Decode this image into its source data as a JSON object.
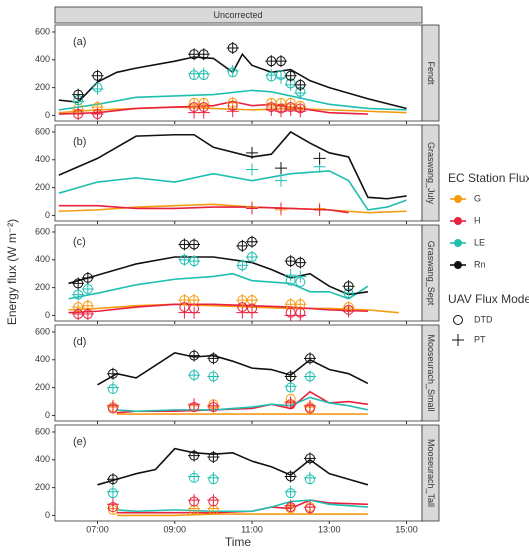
{
  "shared": {
    "strip_title": "Uncorrected",
    "x_label": "Time",
    "y_label": "Energy flux (W m⁻²)",
    "xlim": [
      5.9,
      15.4
    ],
    "xticks": [
      {
        "value": 7,
        "label": "07:00"
      },
      {
        "value": 9,
        "label": "09:00"
      },
      {
        "value": 11,
        "label": "11:00"
      },
      {
        "value": 13,
        "label": "13:00"
      },
      {
        "value": 15,
        "label": "15:00"
      }
    ],
    "legend_title": "EC Station Flux",
    "model_legend_title": "UAV Flux Model",
    "models": [
      "DTD",
      "PT"
    ]
  },
  "chart_data": [
    {
      "type": "line",
      "strip": "Fendt",
      "annotation": "(a)",
      "ylim": [
        -40,
        650
      ],
      "yticks": [
        0,
        200,
        400,
        600
      ],
      "uav_x": [
        6.5,
        7.0,
        9.5,
        9.75,
        10.5,
        11.5,
        11.75,
        12.0,
        12.25
      ],
      "series": [
        {
          "name": "G",
          "color": "#f39c12",
          "x": [
            6,
            7,
            8,
            9,
            10,
            11,
            12,
            13,
            14,
            15
          ],
          "values": [
            20,
            40,
            50,
            60,
            50,
            40,
            50,
            40,
            30,
            20
          ],
          "dtd": [
            50,
            60,
            90,
            90,
            90,
            90,
            90,
            90,
            70
          ],
          "pt": [
            40,
            60,
            80,
            80,
            90,
            80,
            80,
            80,
            60
          ]
        },
        {
          "name": "H",
          "color": "#e8213f",
          "x": [
            6,
            7,
            8,
            9,
            10,
            10.5,
            11,
            11.5,
            12,
            12.5,
            13,
            14
          ],
          "values": [
            10,
            20,
            50,
            60,
            70,
            100,
            70,
            80,
            60,
            40,
            20,
            10
          ],
          "dtd": [
            10,
            10,
            60,
            60,
            70,
            60,
            50,
            60,
            50
          ],
          "pt": [
            10,
            10,
            20,
            20,
            30,
            40,
            30,
            40,
            30
          ]
        },
        {
          "name": "LE",
          "color": "#1fbfb0",
          "x": [
            6,
            7,
            8,
            9,
            10,
            11,
            11.5,
            12,
            12.5,
            13,
            14,
            15
          ],
          "values": [
            40,
            80,
            130,
            140,
            150,
            180,
            170,
            140,
            110,
            80,
            50,
            40
          ],
          "dtd": [
            110,
            200,
            290,
            290,
            310,
            280,
            290,
            230,
            170
          ],
          "pt": [
            100,
            190,
            300,
            300,
            320,
            290,
            270,
            220,
            160
          ]
        },
        {
          "name": "Rn",
          "color": "#111111",
          "x": [
            6,
            6.5,
            7,
            7.5,
            8,
            9,
            9.5,
            10,
            10.5,
            10.75,
            11,
            11.5,
            12,
            12.5,
            13,
            14,
            15
          ],
          "values": [
            110,
            95,
            240,
            310,
            340,
            390,
            420,
            410,
            310,
            440,
            360,
            310,
            330,
            250,
            200,
            120,
            50
          ],
          "dtd": [
            150,
            285,
            440,
            440,
            485,
            390,
            390,
            285,
            220
          ],
          "pt": [
            150,
            285,
            440,
            440,
            485,
            390,
            390,
            285,
            220
          ]
        }
      ]
    },
    {
      "type": "line",
      "strip": "Graswang_July",
      "annotation": "(b)",
      "ylim": [
        -40,
        650
      ],
      "yticks": [
        0,
        200,
        400,
        600
      ],
      "uav_x": [
        11,
        11.75,
        12.75
      ],
      "series": [
        {
          "name": "G",
          "color": "#f39c12",
          "x": [
            6,
            7,
            8,
            9,
            10,
            11,
            12,
            13,
            14,
            15
          ],
          "values": [
            30,
            40,
            60,
            70,
            80,
            60,
            50,
            40,
            20,
            30
          ],
          "dtd": [
            null,
            null,
            null
          ],
          "pt": [
            60,
            40,
            50
          ]
        },
        {
          "name": "H",
          "color": "#e8213f",
          "x": [
            6,
            7,
            8,
            9,
            10,
            11,
            12,
            13,
            13.5
          ],
          "values": [
            70,
            70,
            50,
            50,
            60,
            60,
            50,
            40,
            20
          ],
          "dtd": [
            null,
            null,
            null
          ],
          "pt": [
            50,
            50,
            40
          ]
        },
        {
          "name": "LE",
          "color": "#1fbfb0",
          "x": [
            6,
            7,
            8,
            9,
            10,
            11,
            12,
            13,
            13.5,
            14,
            14.5,
            15
          ],
          "values": [
            160,
            240,
            270,
            240,
            300,
            250,
            300,
            320,
            250,
            40,
            60,
            110
          ],
          "dtd": [
            null,
            null,
            null
          ],
          "pt": [
            330,
            250,
            350
          ]
        },
        {
          "name": "Rn",
          "color": "#111111",
          "x": [
            6,
            7,
            8,
            9,
            9.5,
            10,
            11,
            11.5,
            12,
            12.5,
            13,
            13.5,
            14,
            14.5,
            15
          ],
          "values": [
            290,
            410,
            570,
            580,
            580,
            490,
            420,
            440,
            600,
            520,
            450,
            420,
            130,
            120,
            140
          ],
          "dtd": [
            null,
            null,
            null
          ],
          "pt": [
            450,
            340,
            410
          ]
        }
      ]
    },
    {
      "type": "line",
      "strip": "Graswang_Sept",
      "annotation": "(c)",
      "ylim": [
        -40,
        650
      ],
      "yticks": [
        0,
        200,
        400,
        600
      ],
      "uav_x": [
        6.5,
        6.75,
        9.25,
        9.5,
        10.75,
        11,
        12.0,
        12.25,
        13.5
      ],
      "series": [
        {
          "name": "G",
          "color": "#f39c12",
          "x": [
            6.25,
            7,
            8,
            9,
            10,
            11,
            12,
            13,
            14,
            14.8
          ],
          "values": [
            40,
            50,
            70,
            80,
            70,
            60,
            50,
            50,
            40,
            20
          ],
          "dtd": [
            60,
            70,
            110,
            110,
            110,
            110,
            80,
            80,
            60
          ],
          "pt": [
            60,
            70,
            110,
            110,
            110,
            110,
            80,
            80,
            60
          ]
        },
        {
          "name": "H",
          "color": "#e8213f",
          "x": [
            6.25,
            7,
            8,
            9,
            10,
            11,
            12,
            13,
            14
          ],
          "values": [
            20,
            30,
            60,
            80,
            80,
            70,
            60,
            40,
            30
          ],
          "dtd": [
            10,
            10,
            60,
            50,
            60,
            50,
            20,
            20,
            40
          ],
          "pt": [
            10,
            10,
            20,
            20,
            20,
            20,
            0,
            0,
            30
          ]
        },
        {
          "name": "LE",
          "color": "#1fbfb0",
          "x": [
            6.25,
            7,
            8,
            9,
            10,
            10.5,
            11,
            12,
            12.5,
            13,
            13.5,
            14
          ],
          "values": [
            120,
            160,
            220,
            260,
            280,
            300,
            250,
            230,
            170,
            170,
            120,
            210
          ],
          "dtd": [
            150,
            190,
            400,
            390,
            360,
            420,
            250,
            240,
            160
          ],
          "pt": [
            150,
            190,
            400,
            390,
            360,
            420,
            290,
            280,
            160
          ]
        },
        {
          "name": "Rn",
          "color": "#111111",
          "x": [
            6.25,
            7,
            8,
            9,
            10,
            11,
            11.5,
            12,
            12.5,
            13,
            13.5,
            14
          ],
          "values": [
            230,
            290,
            370,
            420,
            420,
            380,
            330,
            270,
            300,
            210,
            150,
            170
          ],
          "dtd": [
            230,
            270,
            510,
            510,
            500,
            530,
            390,
            380,
            210
          ],
          "pt": [
            230,
            270,
            510,
            510,
            500,
            530,
            390,
            380,
            210
          ]
        }
      ]
    },
    {
      "type": "line",
      "strip": "Mooseurach_Small",
      "annotation": "(d)",
      "ylim": [
        -40,
        650
      ],
      "yticks": [
        0,
        200,
        400,
        600
      ],
      "uav_x": [
        7.4,
        9.5,
        10,
        12,
        12.5
      ],
      "series": [
        {
          "name": "G",
          "color": "#f39c12",
          "x": [
            7.5,
            8,
            9,
            10,
            11,
            12,
            13,
            14
          ],
          "values": [
            10,
            10,
            10,
            10,
            10,
            10,
            10,
            10
          ],
          "dtd": [
            60,
            60,
            80,
            120,
            60
          ],
          "pt": [
            60,
            70,
            60,
            100,
            60
          ]
        },
        {
          "name": "H",
          "color": "#e8213f",
          "x": [
            7.5,
            8,
            9,
            10,
            11,
            11.5,
            12,
            12.5,
            13,
            13.5,
            14
          ],
          "values": [
            20,
            30,
            30,
            40,
            50,
            80,
            50,
            170,
            90,
            100,
            80
          ],
          "dtd": [
            50,
            60,
            60,
            80,
            50
          ],
          "pt": [
            70,
            80,
            70,
            90,
            70
          ]
        },
        {
          "name": "LE",
          "color": "#1fbfb0",
          "x": [
            7.5,
            8,
            9,
            10,
            11,
            11.5,
            12,
            12.5,
            13,
            13.5,
            14
          ],
          "values": [
            40,
            30,
            40,
            40,
            60,
            80,
            70,
            130,
            90,
            70,
            40
          ],
          "dtd": [
            190,
            290,
            280,
            200,
            280
          ],
          "pt": [
            200,
            290,
            280,
            210,
            280
          ]
        },
        {
          "name": "Rn",
          "color": "#111111",
          "x": [
            7,
            7.5,
            8,
            9,
            9.5,
            10,
            10.5,
            11,
            11.5,
            12,
            12.5,
            13,
            13.5,
            14
          ],
          "values": [
            220,
            300,
            270,
            450,
            420,
            430,
            390,
            340,
            330,
            290,
            400,
            330,
            300,
            230
          ],
          "dtd": [
            300,
            430,
            410,
            280,
            410
          ],
          "pt": [
            300,
            430,
            410,
            280,
            410
          ]
        }
      ]
    },
    {
      "type": "line",
      "strip": "Mooseurach_Tall",
      "annotation": "(e)",
      "ylim": [
        -40,
        650
      ],
      "yticks": [
        0,
        200,
        400,
        600
      ],
      "uav_x": [
        7.4,
        9.5,
        10,
        12,
        12.5
      ],
      "series": [
        {
          "name": "G",
          "color": "#f39c12",
          "x": [
            7.5,
            9,
            10,
            11,
            12,
            13,
            14
          ],
          "values": [
            0,
            0,
            10,
            10,
            10,
            10,
            10
          ],
          "dtd": [
            40,
            40,
            40,
            50,
            60
          ],
          "pt": [
            50,
            50,
            50,
            60,
            60
          ]
        },
        {
          "name": "H",
          "color": "#e8213f",
          "x": [
            7.5,
            9,
            10,
            11,
            11.5,
            12,
            12.5,
            13,
            14
          ],
          "values": [
            20,
            20,
            20,
            30,
            60,
            50,
            110,
            90,
            80
          ],
          "dtd": [
            60,
            100,
            100,
            60,
            50
          ],
          "pt": [
            80,
            110,
            110,
            70,
            60
          ]
        },
        {
          "name": "LE",
          "color": "#1fbfb0",
          "x": [
            7.5,
            8,
            9,
            10,
            11,
            11.5,
            12,
            12.5,
            13,
            13.5,
            14
          ],
          "values": [
            40,
            30,
            40,
            30,
            30,
            60,
            100,
            110,
            80,
            70,
            60
          ],
          "dtd": [
            160,
            270,
            260,
            160,
            260
          ],
          "pt": [
            170,
            280,
            270,
            170,
            270
          ]
        },
        {
          "name": "Rn",
          "color": "#111111",
          "x": [
            7,
            7.5,
            8,
            8.5,
            9,
            9.5,
            10,
            10.5,
            11,
            11.5,
            12,
            12.5,
            13,
            13.5,
            14
          ],
          "values": [
            220,
            260,
            300,
            330,
            480,
            450,
            440,
            450,
            390,
            350,
            290,
            400,
            300,
            260,
            220
          ],
          "dtd": [
            260,
            430,
            420,
            280,
            410
          ],
          "pt": [
            260,
            430,
            420,
            280,
            410
          ]
        }
      ]
    }
  ]
}
